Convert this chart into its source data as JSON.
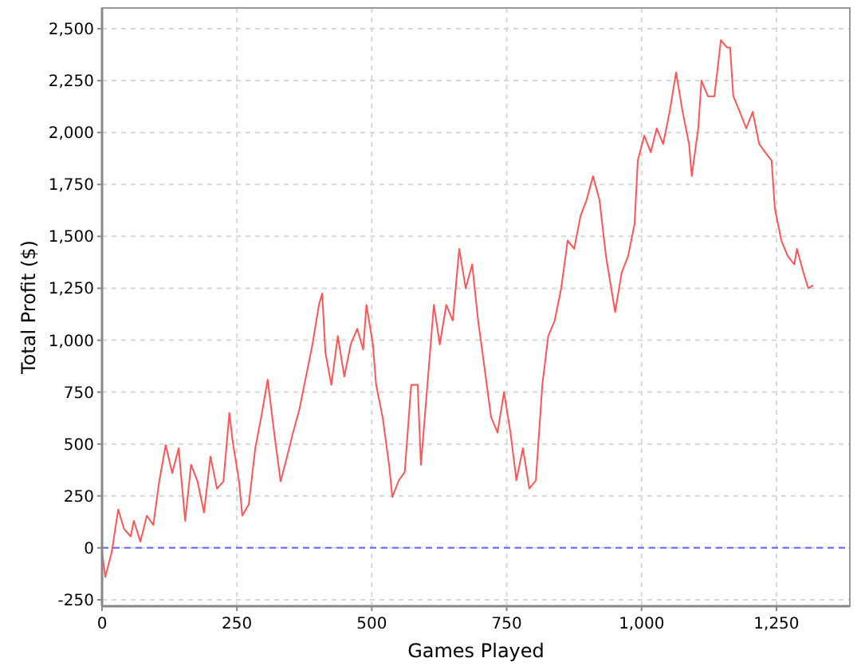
{
  "chart_data": {
    "type": "line",
    "xlabel": "Games Played",
    "ylabel": "Total Profit ($)",
    "xlim": [
      0,
      1386
    ],
    "ylim": [
      -281,
      2600
    ],
    "xticks": [
      0,
      250,
      500,
      750,
      {
        "value": 1000,
        "label": "1,000"
      },
      {
        "value": 1250,
        "label": "1,250"
      }
    ],
    "yticks": [
      -250,
      0,
      250,
      500,
      750,
      {
        "value": 1000,
        "label": "1,000"
      },
      {
        "value": 1250,
        "label": "1,250"
      },
      {
        "value": 1500,
        "label": "1,500"
      },
      {
        "value": 1750,
        "label": "1,750"
      },
      {
        "value": 2000,
        "label": "2,000"
      },
      {
        "value": 2250,
        "label": "2,250"
      },
      {
        "value": 2500,
        "label": "2,500"
      }
    ],
    "grid": true,
    "marker": "none",
    "line_style": "solid",
    "ref_lines": [
      {
        "axis": "y",
        "value": 0,
        "color": "#6666ff",
        "line_style": "dashed"
      }
    ],
    "series": [
      {
        "color": "#ff5555",
        "x": [
          0,
          6,
          18,
          30,
          41,
          53,
          59,
          71,
          83,
          95,
          106,
          118,
          130,
          142,
          154,
          165,
          177,
          189,
          201,
          213,
          225,
          236,
          242,
          254,
          260,
          272,
          284,
          295,
          307,
          319,
          331,
          343,
          354,
          366,
          378,
          390,
          402,
          408,
          414,
          425,
          437,
          449,
          461,
          473,
          484,
          490,
          502,
          508,
          520,
          532,
          538,
          550,
          561,
          573,
          585,
          591,
          603,
          615,
          626,
          638,
          650,
          662,
          674,
          686,
          697,
          709,
          721,
          733,
          745,
          757,
          768,
          780,
          792,
          804,
          816,
          827,
          839,
          851,
          863,
          875,
          887,
          898,
          910,
          922,
          934,
          951,
          963,
          975,
          987,
          993,
          1005,
          1017,
          1028,
          1040,
          1052,
          1064,
          1076,
          1088,
          1093,
          1105,
          1111,
          1123,
          1135,
          1147,
          1158,
          1164,
          1170,
          1182,
          1194,
          1206,
          1218,
          1229,
          1241,
          1247,
          1259,
          1271,
          1283,
          1288,
          1300,
          1309,
          1318
        ],
        "values": [
          -20,
          -140,
          -20,
          185,
          90,
          55,
          130,
          30,
          155,
          110,
          320,
          495,
          360,
          480,
          130,
          400,
          320,
          170,
          440,
          285,
          320,
          650,
          515,
          320,
          155,
          210,
          480,
          630,
          810,
          555,
          320,
          440,
          555,
          670,
          825,
          980,
          1170,
          1225,
          940,
          785,
          1020,
          825,
          980,
          1055,
          955,
          1170,
          980,
          785,
          630,
          400,
          245,
          325,
          365,
          785,
          785,
          400,
          785,
          1170,
          980,
          1170,
          1095,
          1440,
          1250,
          1365,
          1095,
          865,
          630,
          555,
          750,
          555,
          325,
          480,
          285,
          325,
          785,
          1020,
          1095,
          1250,
          1480,
          1440,
          1600,
          1675,
          1790,
          1675,
          1405,
          1135,
          1325,
          1405,
          1560,
          1865,
          1985,
          1905,
          2020,
          1945,
          2100,
          2290,
          2100,
          1945,
          1790,
          2020,
          2250,
          2175,
          2175,
          2445,
          2410,
          2410,
          2175,
          2100,
          2020,
          2100,
          1945,
          1905,
          1865,
          1635,
          1480,
          1405,
          1365,
          1440,
          1325,
          1250,
          1265
        ]
      }
    ]
  }
}
